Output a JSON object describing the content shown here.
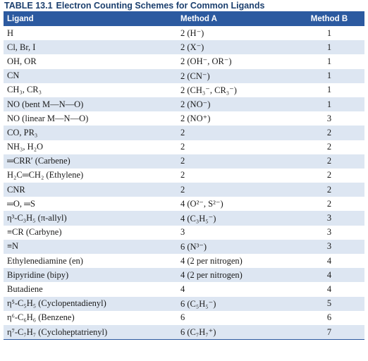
{
  "caption": {
    "label": "TABLE 13.1",
    "title": "Electron Counting Schemes for Common Ligands"
  },
  "headers": {
    "ligand": "Ligand",
    "method_a": "Method A",
    "method_b": "Method B"
  },
  "rows": [
    {
      "ligand": "H",
      "method_a": "2 (H⁻)",
      "method_b": "1"
    },
    {
      "ligand": "Cl, Br, I",
      "method_a": "2 (X⁻)",
      "method_b": "1"
    },
    {
      "ligand": "OH, OR",
      "method_a": "2 (OH⁻, OR⁻)",
      "method_b": "1"
    },
    {
      "ligand": "CN",
      "method_a": "2 (CN⁻)",
      "method_b": "1"
    },
    {
      "ligand": "CH₃, CR₃",
      "method_a": "2 (CH₃⁻, CR₃⁻)",
      "method_b": "1"
    },
    {
      "ligand": "NO (bent M—N—O)",
      "method_a": "2 (NO⁻)",
      "method_b": "1"
    },
    {
      "ligand": "NO (linear M—N—O)",
      "method_a": "2 (NO⁺)",
      "method_b": "3"
    },
    {
      "ligand": "CO, PR₃",
      "method_a": "2",
      "method_b": "2"
    },
    {
      "ligand": "NH₃, H₂O",
      "method_a": "2",
      "method_b": "2"
    },
    {
      "ligand": "═CRR′ (Carbene)",
      "method_a": "2",
      "method_b": "2"
    },
    {
      "ligand": "H₂C═CH₂ (Ethylene)",
      "method_a": "2",
      "method_b": "2"
    },
    {
      "ligand": "CNR",
      "method_a": "2",
      "method_b": "2"
    },
    {
      "ligand": "═O, ═S",
      "method_a": "4 (O²⁻, S²⁻)",
      "method_b": "2"
    },
    {
      "ligand": "η³-C₃H₅ (π-allyl)",
      "method_a": "4 (C₃H₅⁻)",
      "method_b": "3"
    },
    {
      "ligand": "≡CR (Carbyne)",
      "method_a": "3",
      "method_b": "3"
    },
    {
      "ligand": "≡N",
      "method_a": "6 (N³⁻)",
      "method_b": "3"
    },
    {
      "ligand": "Ethylenediamine (en)",
      "method_a": "4 (2 per nitrogen)",
      "method_b": "4"
    },
    {
      "ligand": "Bipyridine (bipy)",
      "method_a": "4 (2 per nitrogen)",
      "method_b": "4"
    },
    {
      "ligand": "Butadiene",
      "method_a": "4",
      "method_b": "4"
    },
    {
      "ligand": "η⁵-C₅H₅ (Cyclopentadienyl)",
      "method_a": "6 (C₅H₅⁻)",
      "method_b": "5"
    },
    {
      "ligand": "η⁶-C₆H₆ (Benzene)",
      "method_a": "6",
      "method_b": "6"
    },
    {
      "ligand": "η⁷-C₇H₇ (Cycloheptatrienyl)",
      "method_a": "6 (C₇H₇⁺)",
      "method_b": "7"
    }
  ]
}
